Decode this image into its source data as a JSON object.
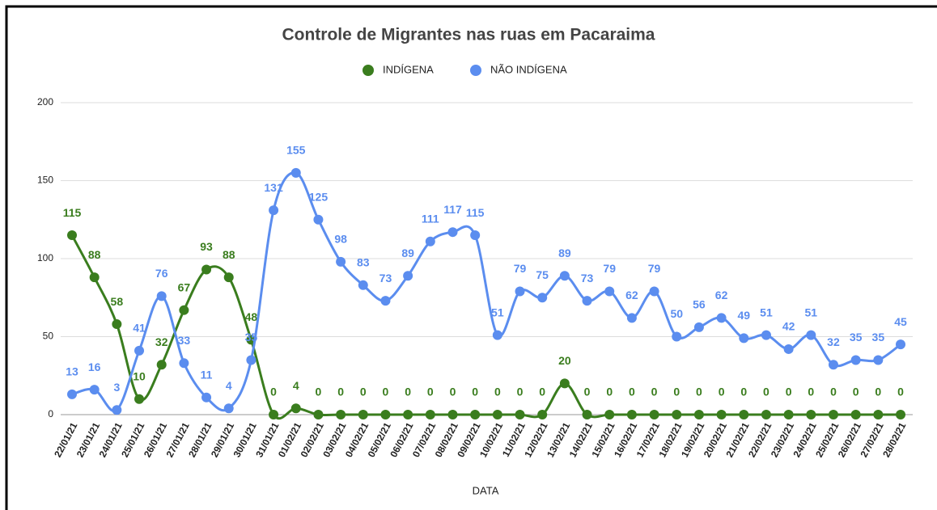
{
  "chart_data": {
    "type": "line",
    "title": "Controle de Migrantes nas ruas em Pacaraima",
    "x_label": "DATA",
    "categories": [
      "22/01/21",
      "23/01/21",
      "24/01/21",
      "25/01/21",
      "26/01/21",
      "27/01/21",
      "28/01/21",
      "29/01/21",
      "30/01/21",
      "31/01/21",
      "01/02/21",
      "02/02/21",
      "03/02/21",
      "04/02/21",
      "05/02/21",
      "06/02/21",
      "07/02/21",
      "08/02/21",
      "09/02/21",
      "10/02/21",
      "11/02/21",
      "12/02/21",
      "13/02/21",
      "14/02/21",
      "15/02/21",
      "16/02/21",
      "17/02/21",
      "18/02/21",
      "19/02/21",
      "20/02/21",
      "21/02/21",
      "22/02/21",
      "23/02/21",
      "24/02/21",
      "25/02/21",
      "26/02/21",
      "27/02/21",
      "28/02/21"
    ],
    "series": [
      {
        "name": "INDÍGENA",
        "color": "#3a7d1e",
        "values": [
          115,
          88,
          58,
          10,
          32,
          67,
          93,
          88,
          48,
          0,
          4,
          0,
          0,
          0,
          0,
          0,
          0,
          0,
          0,
          0,
          0,
          0,
          20,
          0,
          0,
          0,
          0,
          0,
          0,
          0,
          0,
          0,
          0,
          0,
          0,
          0,
          0,
          0
        ]
      },
      {
        "name": "NÃO INDÍGENA",
        "color": "#5b8def",
        "values": [
          13,
          16,
          3,
          41,
          76,
          33,
          11,
          4,
          35,
          131,
          155,
          125,
          98,
          83,
          73,
          89,
          111,
          117,
          115,
          51,
          79,
          75,
          89,
          73,
          79,
          62,
          79,
          50,
          56,
          62,
          49,
          51,
          42,
          51,
          32,
          35,
          35,
          45
        ]
      }
    ],
    "ylim": [
      0,
      200
    ],
    "yticks": [
      0,
      50,
      100,
      150,
      200
    ],
    "grid": true,
    "legend": "top"
  }
}
